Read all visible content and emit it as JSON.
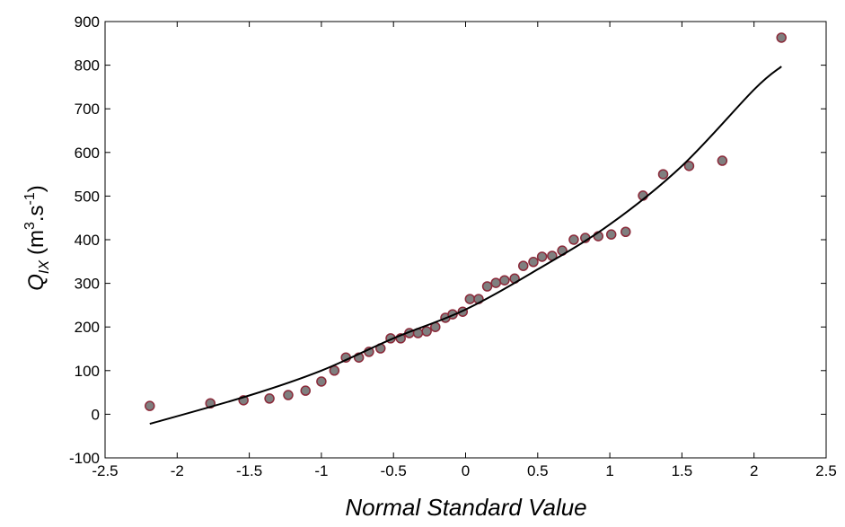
{
  "chart_data": {
    "type": "scatter",
    "xlabel": "Normal Standard Value",
    "ylabel_parts": [
      "Q",
      "IX",
      "(m",
      "3",
      ".s",
      "-1",
      ")"
    ],
    "xlim": [
      -2.5,
      2.5
    ],
    "ylim": [
      -100,
      900
    ],
    "xticks": [
      -2.5,
      -2,
      -1.5,
      -1,
      -0.5,
      0,
      0.5,
      1,
      1.5,
      2,
      2.5
    ],
    "yticks": [
      -100,
      0,
      100,
      200,
      300,
      400,
      500,
      600,
      700,
      800,
      900
    ],
    "series": [
      {
        "type": "scatter",
        "color": "#7f7f7f",
        "edge_color": "#8b2a3a",
        "x": [
          -2.19,
          -1.77,
          -1.54,
          -1.36,
          -1.23,
          -1.11,
          -1.0,
          -0.91,
          -0.83,
          -0.74,
          -0.67,
          -0.59,
          -0.52,
          -0.45,
          -0.39,
          -0.33,
          -0.27,
          -0.21,
          -0.14,
          -0.09,
          -0.02,
          0.03,
          0.09,
          0.15,
          0.21,
          0.27,
          0.34,
          0.4,
          0.47,
          0.53,
          0.6,
          0.67,
          0.75,
          0.83,
          0.92,
          1.01,
          1.11,
          1.23,
          1.37,
          1.55,
          1.78,
          2.19
        ],
        "values": [
          19,
          25,
          32,
          36,
          44,
          54,
          75,
          100,
          130,
          130,
          143,
          151,
          174,
          174,
          186,
          186,
          190,
          200,
          221,
          229,
          235,
          264,
          264,
          293,
          301,
          307,
          311,
          340,
          349,
          361,
          363,
          375,
          400,
          404,
          408,
          412,
          418,
          501,
          550,
          569,
          581,
          863
        ]
      },
      {
        "type": "line",
        "color": "#000000",
        "x": [
          -2.19,
          -1.5,
          -1,
          -0.5,
          0,
          0.5,
          1,
          1.5,
          2,
          2.19
        ],
        "values": [
          -22,
          43,
          100,
          174,
          240,
          332,
          435,
          569,
          744,
          797
        ]
      }
    ]
  }
}
